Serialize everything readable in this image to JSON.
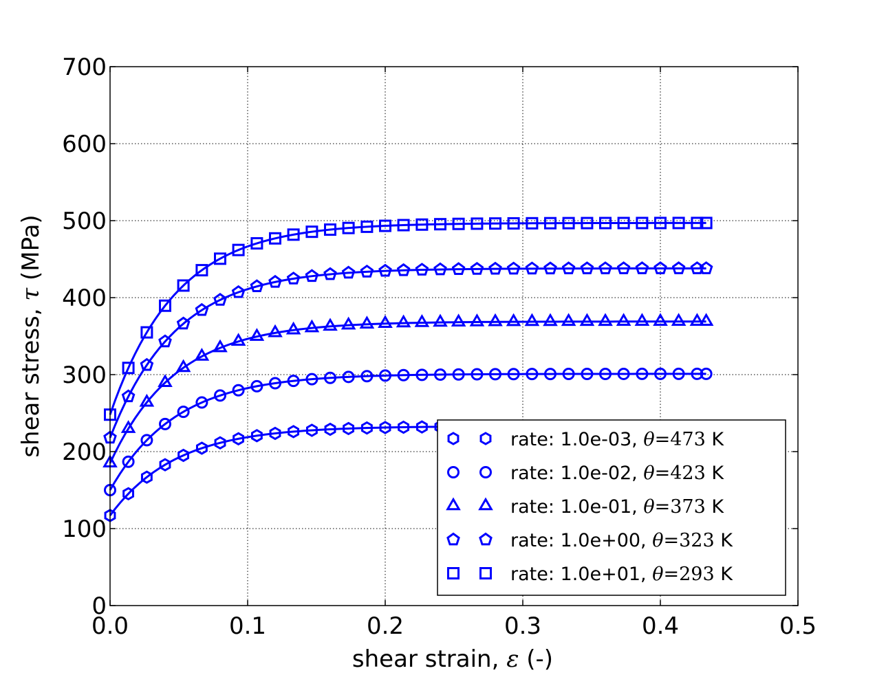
{
  "chart_data": {
    "type": "line",
    "title": "",
    "xlabel_prefix": "shear strain, ",
    "xlabel_symbol": "ε",
    "xlabel_suffix": " (-)",
    "ylabel_prefix": "shear stress, ",
    "ylabel_symbol": "τ",
    "ylabel_suffix": " (MPa)",
    "xlim": [
      0.0,
      0.5
    ],
    "ylim": [
      0,
      700
    ],
    "xticks": [
      "0.0",
      "0.1",
      "0.2",
      "0.3",
      "0.4",
      "0.5"
    ],
    "yticks": [
      "0",
      "100",
      "200",
      "300",
      "400",
      "500",
      "600",
      "700"
    ],
    "grid": true,
    "legend_position": "lower-right",
    "color": "#0000ff",
    "x": [
      0.0,
      0.0133,
      0.0267,
      0.04,
      0.0533,
      0.0667,
      0.08,
      0.0933,
      0.1067,
      0.12,
      0.1333,
      0.1467,
      0.16,
      0.1733,
      0.1867,
      0.2,
      0.2133,
      0.2267,
      0.24,
      0.2533,
      0.2667,
      0.28,
      0.2933,
      0.3067,
      0.32,
      0.3333,
      0.3467,
      0.36,
      0.3733,
      0.3867,
      0.4,
      0.4133,
      0.4267,
      0.4333
    ],
    "series": [
      {
        "name": "rate: 1.0e-03, ",
        "theta_symbol": "θ",
        "theta_value": "=473",
        "unit": " K",
        "marker": "hexagon",
        "y0": 117,
        "ysat": 233,
        "k": 21
      },
      {
        "name": "rate: 1.0e-02, ",
        "theta_symbol": "θ",
        "theta_value": "=423",
        "unit": " K",
        "marker": "circle",
        "y0": 150,
        "ysat": 301,
        "k": 21
      },
      {
        "name": "rate: 1.0e-01, ",
        "theta_symbol": "θ",
        "theta_value": "=373",
        "unit": " K",
        "marker": "triangle",
        "y0": 185,
        "ysat": 369,
        "k": 21
      },
      {
        "name": "rate: 1.0e+00, ",
        "theta_symbol": "θ",
        "theta_value": "=323",
        "unit": " K",
        "marker": "pentagon",
        "y0": 218,
        "ysat": 438,
        "k": 21
      },
      {
        "name": "rate: 1.0e+01, ",
        "theta_symbol": "θ",
        "theta_value": "=293",
        "unit": " K",
        "marker": "square",
        "y0": 248,
        "ysat": 497,
        "k": 21
      }
    ]
  }
}
